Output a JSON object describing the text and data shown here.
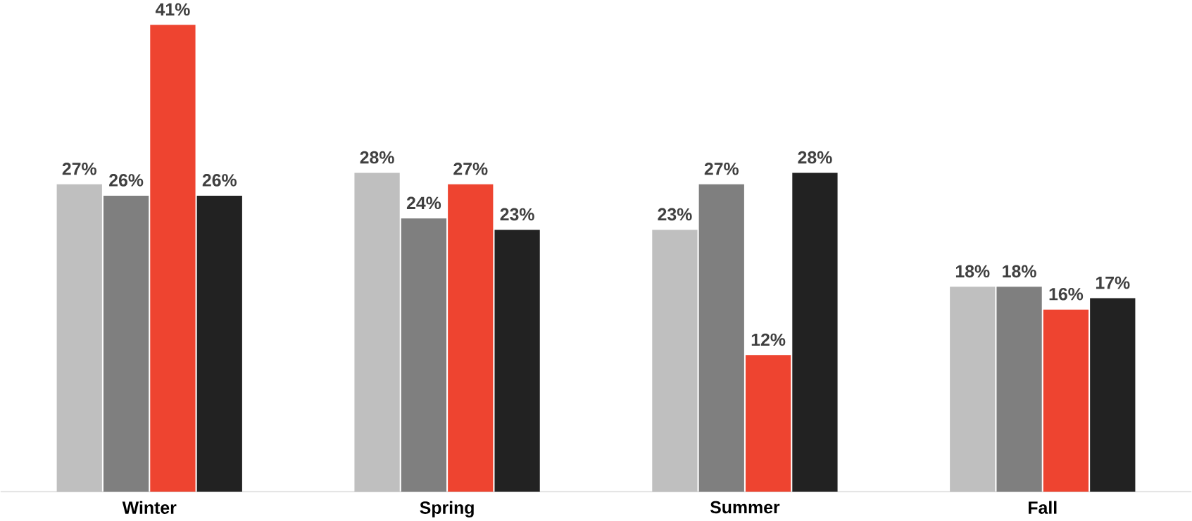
{
  "chart_data": {
    "type": "bar",
    "categories": [
      "Winter",
      "Spring",
      "Summer",
      "Fall"
    ],
    "series": [
      {
        "color": "#bfbfbf",
        "values": [
          27,
          28,
          23,
          18
        ],
        "value_labels": [
          "27%",
          "28%",
          "23%",
          "18%"
        ]
      },
      {
        "color": "#7f7f7f",
        "values": [
          26,
          24,
          27,
          18
        ],
        "value_labels": [
          "26%",
          "24%",
          "27%",
          "18%"
        ]
      },
      {
        "color": "#ee4430",
        "values": [
          41,
          27,
          12,
          16
        ],
        "value_labels": [
          "41%",
          "27%",
          "12%",
          "16%"
        ]
      },
      {
        "color": "#222222",
        "values": [
          26,
          23,
          28,
          17
        ],
        "value_labels": [
          "26%",
          "23%",
          "28%",
          "17%"
        ]
      }
    ]
  }
}
